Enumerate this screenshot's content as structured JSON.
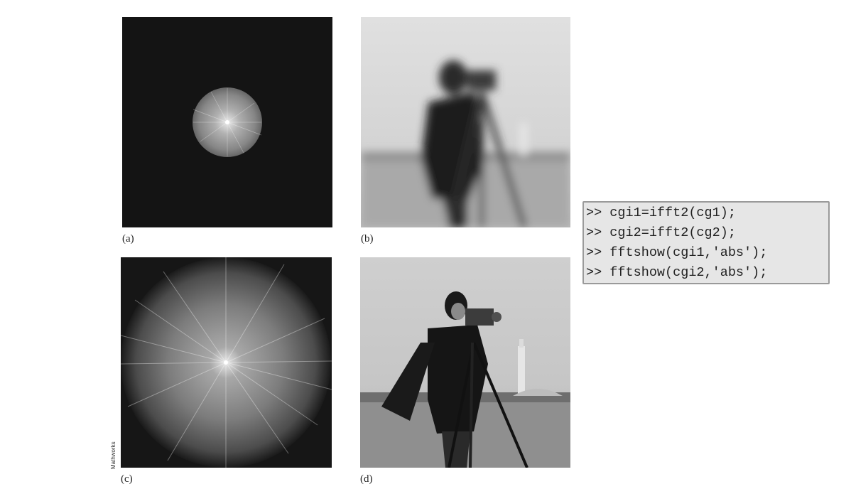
{
  "figure": {
    "panels": [
      {
        "label": "(a)",
        "description_icon": "fourier-spectrum-small-disk-icon"
      },
      {
        "label": "(b)",
        "description_icon": "blurred-cameraman-photo-icon"
      },
      {
        "label": "(c)",
        "description_icon": "fourier-spectrum-large-disk-icon"
      },
      {
        "label": "(d)",
        "description_icon": "cameraman-photo-icon"
      }
    ],
    "credit": "Mathworks"
  },
  "code": {
    "lines": [
      ">> cgi1=ifft2(cg1);",
      ">> cgi2=ifft2(cg2);",
      ">> fftshow(cgi1,'abs');",
      ">> fftshow(cgi2,'abs');"
    ]
  }
}
